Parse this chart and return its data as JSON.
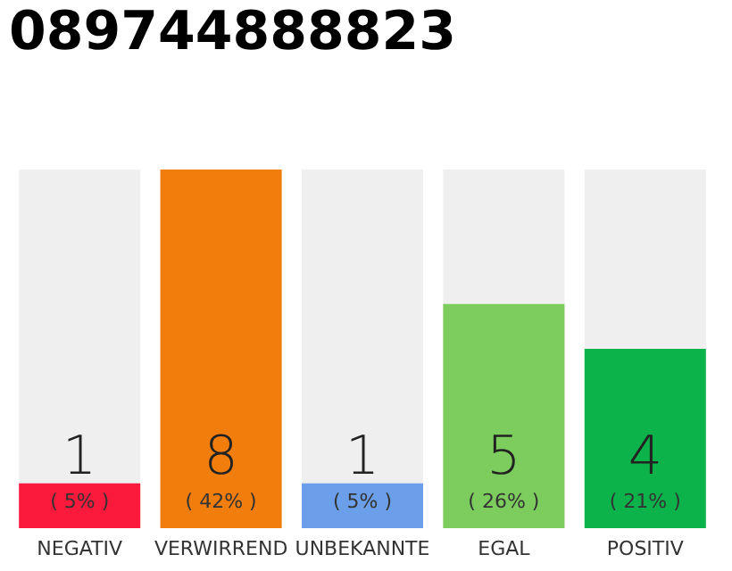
{
  "chart_data": {
    "type": "bar",
    "title": "089744888823",
    "categories": [
      "NEGATIV",
      "VERWIRREND",
      "UNBEKANNTE",
      "EGAL",
      "POSITIV"
    ],
    "values": [
      1,
      8,
      1,
      5,
      4
    ],
    "colors": [
      "#fc1a3c",
      "#f07d0c",
      "#6c9fe9",
      "#7dcc5e",
      "#0cb34a"
    ],
    "value_labels": [
      "1\n( 5% )",
      "8\n( 42% )",
      "1\n( 5% )",
      "5\n( 26% )",
      "4\n( 21% )"
    ]
  }
}
